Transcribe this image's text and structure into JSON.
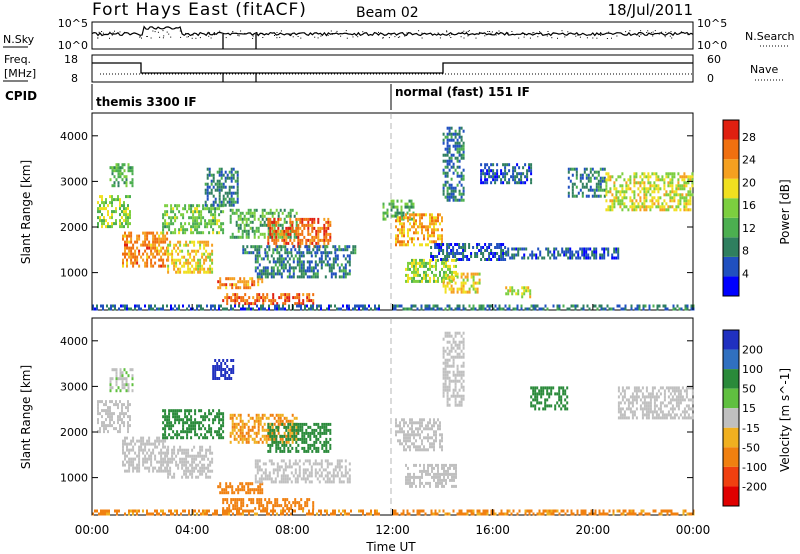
{
  "header": {
    "station": "Fort Hays East (fitACF)",
    "beam": "Beam 02",
    "date": "18/Jul/2011"
  },
  "top_panel": {
    "left_label": "N.Sky",
    "right_label": "N.Search",
    "left_ticks": [
      "10^5",
      "10^0"
    ],
    "right_ticks": [
      "10^5",
      "10^0"
    ]
  },
  "freq_panel": {
    "left_label_1": "Freq.",
    "left_label_2": "[MHz]",
    "right_label": "Nave",
    "left_ticks": [
      "18",
      "8"
    ],
    "right_ticks": [
      "60",
      "0"
    ]
  },
  "cpid": {
    "label": "CPID",
    "modes": [
      "themis 3300 IF",
      "normal (fast) 151 IF"
    ]
  },
  "colors": {
    "power": [
      "#0000ff",
      "#2050c0",
      "#2f7f5f",
      "#4caf50",
      "#7ccf3f",
      "#f0e020",
      "#f5a020",
      "#f07010",
      "#e02010"
    ],
    "velocity": [
      "#2030c0",
      "#3070c0",
      "#2a8a3a",
      "#60c040",
      "#c0c0c0",
      "#f0b020",
      "#f08010",
      "#f04010",
      "#e00000"
    ]
  },
  "chart_data": [
    {
      "type": "heatmap",
      "title": "",
      "xlabel": "Time UT",
      "ylabel": "Slant Range [km]",
      "x_range": [
        "00:00",
        "00:00"
      ],
      "x_ticks": [
        "00:00",
        "04:00",
        "08:00",
        "12:00",
        "16:00",
        "20:00",
        "00:00"
      ],
      "ylim": [
        180,
        4500
      ],
      "y_ticks": [
        "1000",
        "2000",
        "3000",
        "4000"
      ],
      "colorbar": {
        "label": "Power [dB]",
        "ticks": [
          "4",
          "8",
          "12",
          "16",
          "20",
          "24",
          "28"
        ],
        "range": [
          0,
          31
        ]
      },
      "grid": false,
      "regions": [
        {
          "t0": 0.7,
          "t1": 1.6,
          "r0": 2900,
          "r1": 3400,
          "value": 12
        },
        {
          "t0": 0.2,
          "t1": 1.5,
          "r0": 2000,
          "r1": 2700,
          "value": 16
        },
        {
          "t0": 1.2,
          "t1": 3.0,
          "r0": 1150,
          "r1": 1900,
          "value": 24
        },
        {
          "t0": 3.0,
          "t1": 4.8,
          "r0": 1000,
          "r1": 1700,
          "value": 20
        },
        {
          "t0": 2.8,
          "t1": 5.2,
          "r0": 1900,
          "r1": 2500,
          "value": 14
        },
        {
          "t0": 4.5,
          "t1": 5.8,
          "r0": 2500,
          "r1": 3300,
          "value": 8
        },
        {
          "t0": 5.5,
          "t1": 8.2,
          "r0": 1800,
          "r1": 2400,
          "value": 12
        },
        {
          "t0": 7.0,
          "t1": 9.5,
          "r0": 1600,
          "r1": 2200,
          "value": 26
        },
        {
          "t0": 5.0,
          "t1": 6.8,
          "r0": 700,
          "r1": 900,
          "value": 24
        },
        {
          "t0": 5.2,
          "t1": 8.8,
          "r0": 350,
          "r1": 550,
          "value": 26
        },
        {
          "t0": 6.5,
          "t1": 10.3,
          "r0": 900,
          "r1": 1400,
          "value": 8
        },
        {
          "t0": 6.0,
          "t1": 10.5,
          "r0": 1450,
          "r1": 1600,
          "value": 8
        },
        {
          "t0": 0.0,
          "t1": 11.5,
          "r0": 180,
          "r1": 300,
          "value": 6
        },
        {
          "t0": 11.6,
          "t1": 12.8,
          "r0": 2200,
          "r1": 2600,
          "value": 12
        },
        {
          "t0": 12.1,
          "t1": 14.0,
          "r0": 1600,
          "r1": 2300,
          "value": 22
        },
        {
          "t0": 12.5,
          "t1": 14.5,
          "r0": 800,
          "r1": 1300,
          "value": 16
        },
        {
          "t0": 14.0,
          "t1": 15.5,
          "r0": 600,
          "r1": 1000,
          "value": 20
        },
        {
          "t0": 13.5,
          "t1": 16.5,
          "r0": 1300,
          "r1": 1650,
          "value": 6
        },
        {
          "t0": 16.5,
          "t1": 21.0,
          "r0": 1300,
          "r1": 1550,
          "value": 6
        },
        {
          "t0": 14.0,
          "t1": 14.8,
          "r0": 2600,
          "r1": 4200,
          "value": 8
        },
        {
          "t0": 15.5,
          "t1": 17.5,
          "r0": 3000,
          "r1": 3400,
          "value": 6
        },
        {
          "t0": 19.0,
          "t1": 20.5,
          "r0": 2700,
          "r1": 3300,
          "value": 8
        },
        {
          "t0": 20.5,
          "t1": 24.0,
          "r0": 2400,
          "r1": 3200,
          "value": 18
        },
        {
          "t0": 16.5,
          "t1": 17.5,
          "r0": 500,
          "r1": 700,
          "value": 18
        },
        {
          "t0": 12.0,
          "t1": 24.0,
          "r0": 180,
          "r1": 300,
          "value": 8
        }
      ]
    },
    {
      "type": "heatmap",
      "title": "",
      "xlabel": "Time UT",
      "ylabel": "Slant Range [km]",
      "x_range": [
        "00:00",
        "00:00"
      ],
      "x_ticks": [
        "00:00",
        "04:00",
        "08:00",
        "12:00",
        "16:00",
        "20:00",
        "00:00"
      ],
      "ylim": [
        180,
        4500
      ],
      "y_ticks": [
        "1000",
        "2000",
        "3000",
        "4000"
      ],
      "colorbar": {
        "label": "Velocity [m s^-1]",
        "ticks": [
          "200",
          "100",
          "50",
          "15",
          "-15",
          "-50",
          "-100",
          "-200"
        ],
        "range": [
          -250,
          250
        ]
      },
      "grid": false,
      "regions": [
        {
          "t0": 0.2,
          "t1": 1.5,
          "r0": 2000,
          "r1": 2700,
          "value": 0
        },
        {
          "t0": 0.7,
          "t1": 1.6,
          "r0": 2900,
          "r1": 3400,
          "value": 10
        },
        {
          "t0": 1.2,
          "t1": 3.0,
          "r0": 1150,
          "r1": 1900,
          "value": 0
        },
        {
          "t0": 2.8,
          "t1": 5.2,
          "r0": 1900,
          "r1": 2500,
          "value": 60
        },
        {
          "t0": 3.0,
          "t1": 4.8,
          "r0": 1000,
          "r1": 1700,
          "value": 0
        },
        {
          "t0": 4.8,
          "t1": 5.6,
          "r0": 3200,
          "r1": 3600,
          "value": 220
        },
        {
          "t0": 5.5,
          "t1": 8.2,
          "r0": 1800,
          "r1": 2400,
          "value": -30
        },
        {
          "t0": 7.0,
          "t1": 9.5,
          "r0": 1600,
          "r1": 2200,
          "value": 60
        },
        {
          "t0": 5.0,
          "t1": 6.8,
          "r0": 700,
          "r1": 900,
          "value": -60
        },
        {
          "t0": 5.2,
          "t1": 8.8,
          "r0": 350,
          "r1": 550,
          "value": -60
        },
        {
          "t0": 6.5,
          "t1": 10.3,
          "r0": 900,
          "r1": 1400,
          "value": 0
        },
        {
          "t0": 0.0,
          "t1": 11.5,
          "r0": 180,
          "r1": 300,
          "value": -40
        },
        {
          "t0": 12.1,
          "t1": 14.0,
          "r0": 1600,
          "r1": 2300,
          "value": 0
        },
        {
          "t0": 12.5,
          "t1": 14.5,
          "r0": 800,
          "r1": 1300,
          "value": 0
        },
        {
          "t0": 14.0,
          "t1": 14.8,
          "r0": 2600,
          "r1": 4200,
          "value": 0
        },
        {
          "t0": 17.5,
          "t1": 19.0,
          "r0": 2500,
          "r1": 3000,
          "value": 60
        },
        {
          "t0": 21.0,
          "t1": 24.0,
          "r0": 2300,
          "r1": 3000,
          "value": 0
        },
        {
          "t0": 12.0,
          "t1": 24.0,
          "r0": 180,
          "r1": 300,
          "value": -40
        }
      ]
    }
  ]
}
